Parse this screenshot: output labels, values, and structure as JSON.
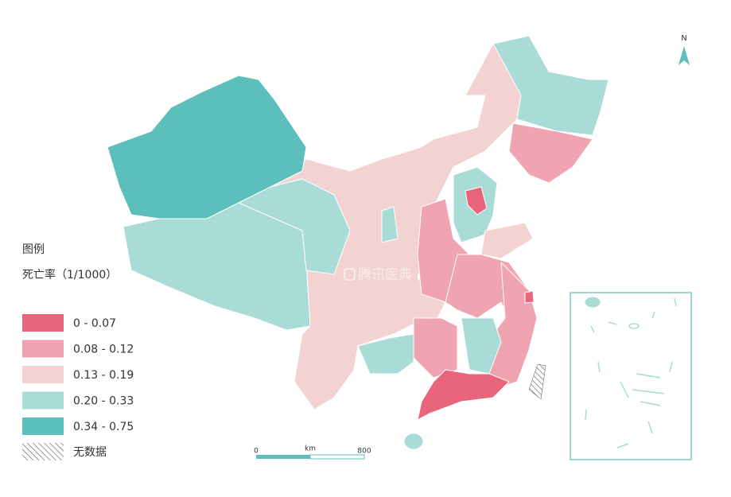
{
  "legend": {
    "title": "图例",
    "subtitle": "死亡率（1/1000）",
    "items": [
      {
        "label": "0 - 0.07",
        "color": "#e8657c"
      },
      {
        "label": "0.08 - 0.12",
        "color": "#f0a3b0"
      },
      {
        "label": "0.13 - 0.19",
        "color": "#f3d3d2"
      },
      {
        "label": "0.20 - 0.33",
        "color": "#a9dcd6"
      },
      {
        "label": "0.34 - 0.75",
        "color": "#5cbfbb"
      }
    ],
    "no_data": "无数据"
  },
  "scale_bar": {
    "start": "0",
    "unit": "km",
    "end": "800"
  },
  "north": "N",
  "watermark": "腾讯医典"
}
